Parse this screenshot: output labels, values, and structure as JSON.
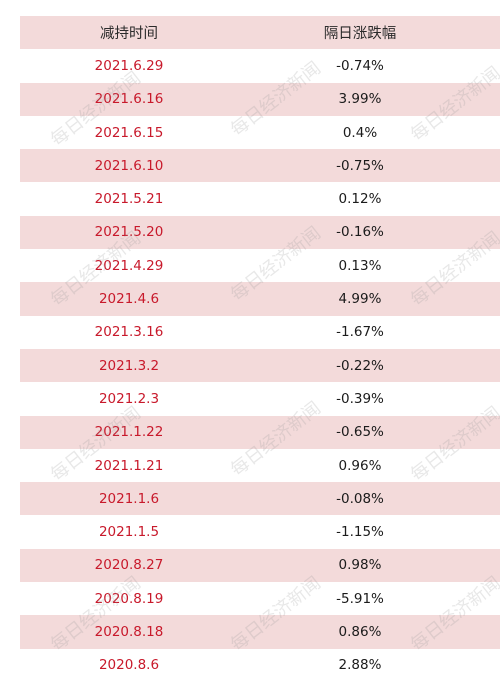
{
  "header": {
    "date_col": "减持时间",
    "change_col": "隔日涨跌幅"
  },
  "rows": [
    {
      "date": "2021.6.29",
      "change": "-0.74%"
    },
    {
      "date": "2021.6.16",
      "change": "3.99%"
    },
    {
      "date": "2021.6.15",
      "change": "0.4%"
    },
    {
      "date": "2021.6.10",
      "change": "-0.75%"
    },
    {
      "date": "2021.5.21",
      "change": "0.12%"
    },
    {
      "date": "2021.5.20",
      "change": "-0.16%"
    },
    {
      "date": "2021.4.29",
      "change": "0.13%"
    },
    {
      "date": "2021.4.6",
      "change": "4.99%"
    },
    {
      "date": "2021.3.16",
      "change": "-1.67%"
    },
    {
      "date": "2021.3.2",
      "change": "-0.22%"
    },
    {
      "date": "2021.2.3",
      "change": "-0.39%"
    },
    {
      "date": "2021.1.22",
      "change": "-0.65%"
    },
    {
      "date": "2021.1.21",
      "change": "0.96%"
    },
    {
      "date": "2021.1.6",
      "change": "-0.08%"
    },
    {
      "date": "2021.1.5",
      "change": "-1.15%"
    },
    {
      "date": "2020.8.27",
      "change": "0.98%"
    },
    {
      "date": "2020.8.19",
      "change": "-5.91%"
    },
    {
      "date": "2020.8.18",
      "change": "0.86%"
    },
    {
      "date": "2020.8.6",
      "change": "2.88%"
    }
  ],
  "watermark": "每日经济新闻",
  "colors": {
    "shade": "#f3dada",
    "date_text": "#c8192b",
    "value_text": "#1b1b1b"
  }
}
